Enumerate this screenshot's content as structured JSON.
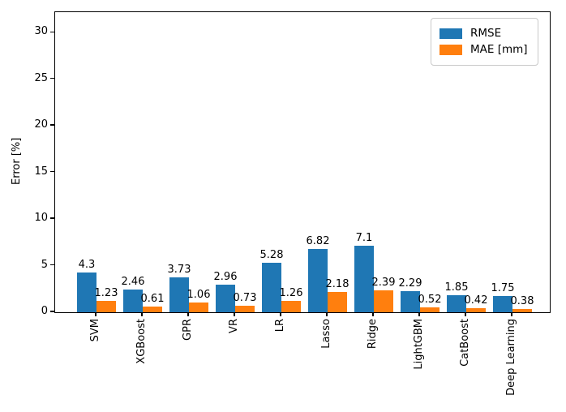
{
  "chart_data": {
    "type": "bar",
    "title": "",
    "xlabel": "",
    "ylabel": "Error [%]",
    "categories": [
      "SVM",
      "XGBoost",
      "GPR",
      "VR",
      "LR",
      "Lasso",
      "Ridge",
      "LightGBM",
      "CatBoost",
      "Deep Learning"
    ],
    "series": [
      {
        "name": "RMSE",
        "color": "#1f77b4",
        "values": [
          4.3,
          2.46,
          3.73,
          2.96,
          5.28,
          6.82,
          7.1,
          2.29,
          1.85,
          1.75
        ]
      },
      {
        "name": "MAE [mm]",
        "color": "#ff7f0e",
        "values": [
          1.23,
          0.61,
          1.06,
          0.73,
          1.26,
          2.18,
          2.39,
          0.52,
          0.42,
          0.38
        ]
      }
    ],
    "yticks": [
      0,
      5,
      10,
      15,
      20,
      25,
      30
    ],
    "ylim": [
      0,
      32.2
    ],
    "grid": false,
    "legend_position": "upper right",
    "bar_value_labels": true,
    "x_tick_rotation_deg": 90
  }
}
